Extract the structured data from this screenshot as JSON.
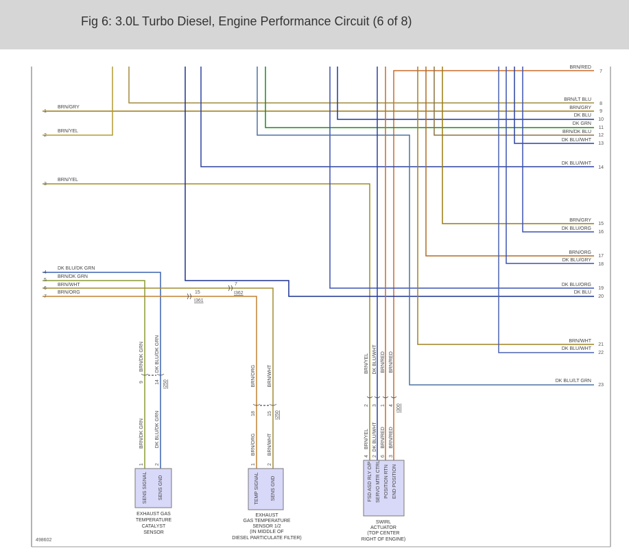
{
  "title": "Fig 6: 3.0L Turbo Diesel, Engine Performance Circuit (6 of 8)",
  "diagram_id": "498602",
  "left_wires": [
    {
      "pin": "1",
      "label": "BRN/GRY"
    },
    {
      "pin": "2",
      "label": "BRN/YEL"
    },
    {
      "pin": "3",
      "label": "BRN/YEL"
    },
    {
      "pin": "4",
      "label": "DK BLU/DK GRN"
    },
    {
      "pin": "5",
      "label": "BRN/DK GRN"
    },
    {
      "pin": "6",
      "label": "BRN/WHT"
    },
    {
      "pin": "7",
      "label": "BRN/ORG"
    }
  ],
  "right_wires": [
    {
      "pin": "7",
      "label": "BRN/RED"
    },
    {
      "pin": "8",
      "label": "BRN/LT BLU"
    },
    {
      "pin": "9",
      "label": "BRN/GRY"
    },
    {
      "pin": "10",
      "label": "DK BLU"
    },
    {
      "pin": "11",
      "label": "DK GRN"
    },
    {
      "pin": "12",
      "label": "BRN/DK BLU"
    },
    {
      "pin": "13",
      "label": "DK BLU/WHT"
    },
    {
      "pin": "14",
      "label": "DK BLU/WHT"
    },
    {
      "pin": "15",
      "label": "BRN/GRY"
    },
    {
      "pin": "16",
      "label": "DK BLU/ORG"
    },
    {
      "pin": "17",
      "label": "BRN/ORG"
    },
    {
      "pin": "18",
      "label": "DK BLU/GRY"
    },
    {
      "pin": "19",
      "label": "DK BLU/ORG"
    },
    {
      "pin": "20",
      "label": "DK BLU"
    },
    {
      "pin": "21",
      "label": "BRN/WHT"
    },
    {
      "pin": "22",
      "label": "DK BLU/WHT"
    },
    {
      "pin": "23",
      "label": "DK BLU/LT GRN"
    }
  ],
  "inline_connectors": [
    {
      "pin": "15",
      "id": "I361"
    },
    {
      "pin": "7",
      "id": "I362"
    }
  ],
  "components": {
    "catalyst_sensor": {
      "caption": [
        "EXHAUST GAS",
        "TEMPERATURE",
        "CATALYST",
        "SENSOR"
      ],
      "connector_id": "I250",
      "connector_pins": [
        "9",
        "14"
      ],
      "wires": [
        "BRN/DK GRN",
        "DK BLU/DK GRN"
      ],
      "pins": [
        "1",
        "2"
      ],
      "terminals": [
        "SENS SIGNAL",
        "SENS GND"
      ]
    },
    "dpf_sensor": {
      "caption": [
        "EXHAUST",
        "GAS TEMPERATURE",
        "SENSOR 1/2",
        "(IN MIDDLE OF",
        "DIESEL PARTICULATE FILTER)"
      ],
      "connector_id": "I250",
      "connector_pins": [
        "18",
        "15"
      ],
      "wires": [
        "BRN/ORG",
        "BRN/WHT"
      ],
      "pins": [
        "1",
        "2"
      ],
      "terminals": [
        "TEMP SIGNAL",
        "SENS GND"
      ]
    },
    "swirl_actuator": {
      "caption": [
        "SWIRL",
        "ACTUATOR",
        "(TOP CENTER",
        "RIGHT OF ENGINE)"
      ],
      "connector_id": "I300",
      "connector_pins": [
        "2",
        "3",
        "1",
        "4"
      ],
      "wires": [
        "BRN/YEL",
        "DK BLU/WHT",
        "BRN/RED",
        "BRN/RED"
      ],
      "pins": [
        "4",
        "2",
        "6",
        "3"
      ],
      "terminals": [
        "FSD ASD RLY O/P",
        "SERVO MTR CTRL",
        "POSITION RTN",
        "END POSITION"
      ]
    }
  },
  "colors": {
    "header_bg": "#d6d6d6",
    "component_fill": "#d8d8f8",
    "brown": "#9a7a10",
    "dark_blue": "#1a3a9a",
    "dark_green": "#1a8a1a",
    "orange": "#c06a30"
  }
}
